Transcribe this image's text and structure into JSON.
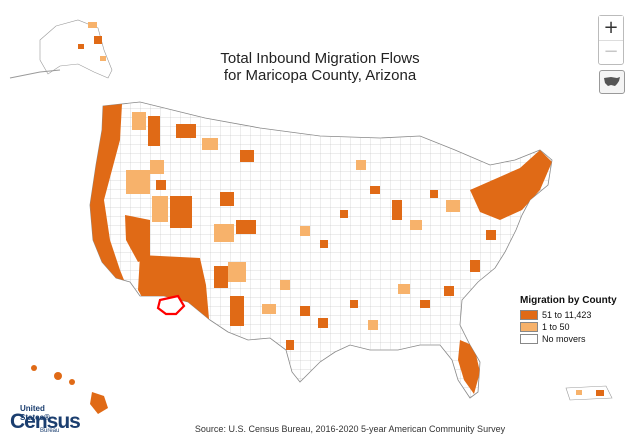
{
  "title_line1": "Total Inbound Migration Flows",
  "title_line2": "for Maricopa County, Arizona",
  "zoom": {
    "in_label": "+",
    "out_label": "−"
  },
  "legend": {
    "title": "Migration by County",
    "items": [
      {
        "label": "51 to 11,423",
        "color": "#e06a16"
      },
      {
        "label": "1 to 50",
        "color": "#f7b26b"
      },
      {
        "label": "No movers",
        "color": "#ffffff"
      }
    ]
  },
  "source": "Source: U.S. Census Bureau, 2016-2020 5-year American Community Survey",
  "logo": {
    "line1": "United States®",
    "line2": "Census",
    "line3": "Bureau"
  },
  "colors": {
    "high": "#e06a16",
    "low": "#f7b26b",
    "none": "#ffffff",
    "border": "#9a9a9a",
    "selected": "#ff0000"
  }
}
